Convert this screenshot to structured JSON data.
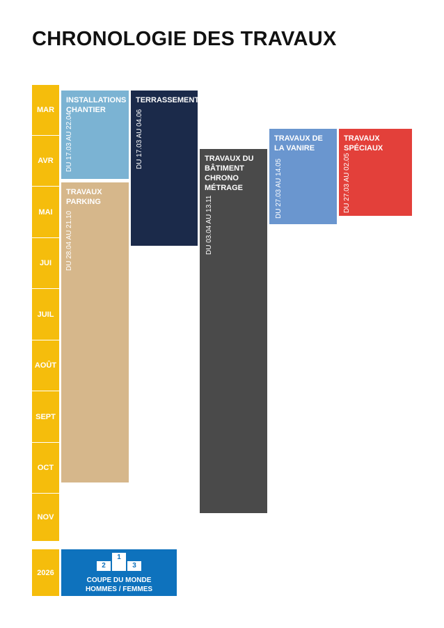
{
  "title": "CHRONOLOGIE DES TRAVAUX",
  "months": [
    "MAR",
    "AVR",
    "MAI",
    "JUI",
    "JUIL",
    "AOÛT",
    "SEPT",
    "OCT",
    "NOV"
  ],
  "year": "2026",
  "tasks": [
    {
      "label": "INSTALLATIONS CHANTIER",
      "dates": "DU 17.03 AU 22.04"
    },
    {
      "label": "TERRASSEMENT",
      "dates": "DU 17.03 AU 04.06"
    },
    {
      "label": "TRAVAUX PARKING",
      "dates": "DU 28.04 AU 21.10"
    },
    {
      "label": "TRAVAUX DU BÂTIMENT CHRONO MÉTRAGE",
      "dates": "DU 03.04 AU 13.11"
    },
    {
      "label": "TRAVAUX DE LA VANIRE",
      "dates": "DU 27.03 AU 14.05"
    },
    {
      "label": "TRAVAUX SPÉCIAUX",
      "dates": "DU 27.03 AU 02.05"
    }
  ],
  "event": {
    "podium": [
      "1",
      "2",
      "3"
    ],
    "line1": "COUPE DU MONDE",
    "line2": "HOMMES / FEMMES"
  }
}
